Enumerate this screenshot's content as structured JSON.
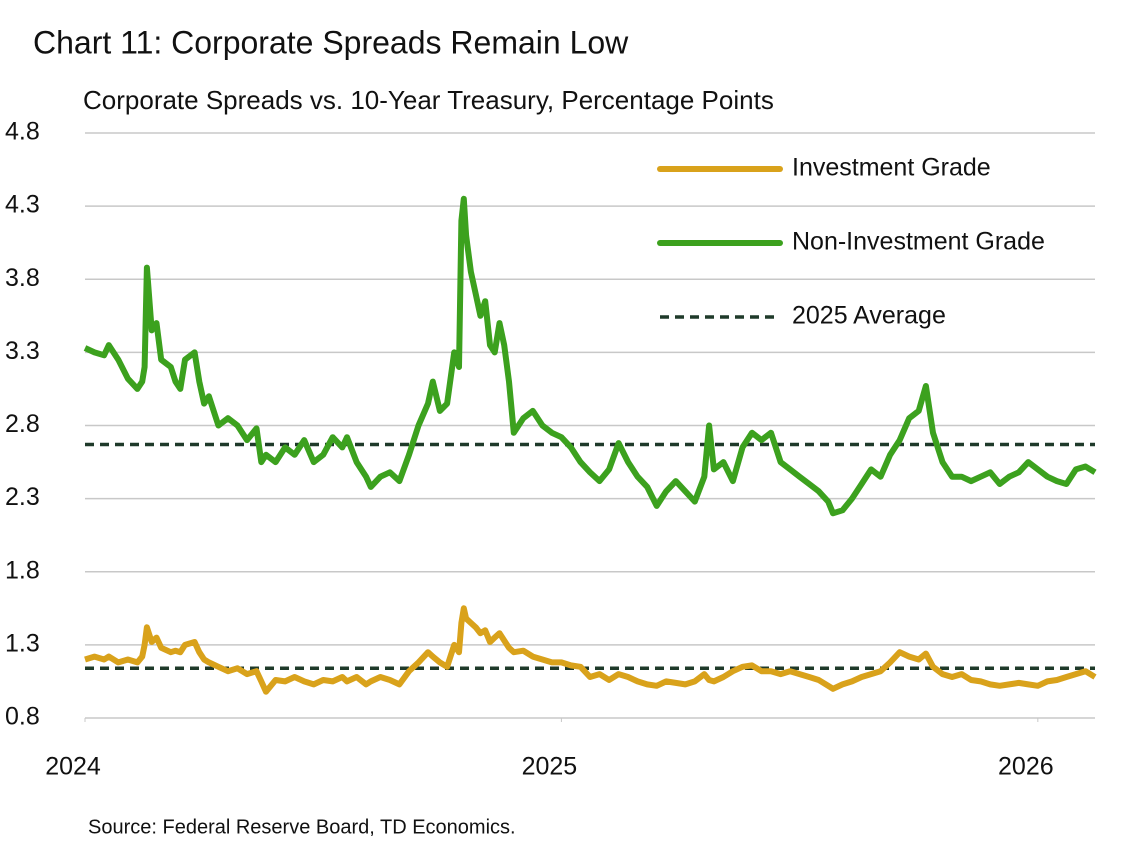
{
  "chart_data": {
    "type": "line",
    "title": "Chart 11: Corporate Spreads Remain Low",
    "subtitle": "Corporate Spreads vs. 10-Year Treasury, Percentage Points",
    "source": "Source: Federal Reserve Board, TD Economics.",
    "xlim": [
      2024,
      2026.12
    ],
    "xticks": [
      2024,
      2025,
      2026
    ],
    "ylim": [
      0.8,
      4.8
    ],
    "yticks": [
      0.8,
      1.3,
      1.8,
      2.3,
      2.8,
      3.3,
      3.8,
      4.3,
      4.8
    ],
    "grid": true,
    "legend": "top-right",
    "x": [
      2024,
      2024.02,
      2024.04,
      2024.05,
      2024.07,
      2024.09,
      2024.11,
      2024.12,
      2024.125,
      2024.13,
      2024.14,
      2024.15,
      2024.16,
      2024.18,
      2024.19,
      2024.2,
      2024.21,
      2024.23,
      2024.24,
      2024.25,
      2024.26,
      2024.28,
      2024.3,
      2024.32,
      2024.34,
      2024.36,
      2024.37,
      2024.38,
      2024.4,
      2024.42,
      2024.44,
      2024.46,
      2024.48,
      2024.5,
      2024.52,
      2024.54,
      2024.55,
      2024.57,
      2024.59,
      2024.6,
      2024.62,
      2024.64,
      2024.66,
      2024.68,
      2024.7,
      2024.72,
      2024.73,
      2024.745,
      2024.76,
      2024.775,
      2024.785,
      2024.79,
      2024.795,
      2024.8,
      2024.81,
      2024.82,
      2024.83,
      2024.84,
      2024.85,
      2024.86,
      2024.87,
      2024.88,
      2024.89,
      2024.9,
      2024.92,
      2024.94,
      2024.96,
      2024.98,
      2025,
      2025.02,
      2025.04,
      2025.06,
      2025.08,
      2025.1,
      2025.12,
      2025.14,
      2025.16,
      2025.18,
      2025.2,
      2025.22,
      2025.24,
      2025.26,
      2025.28,
      2025.3,
      2025.31,
      2025.32,
      2025.34,
      2025.36,
      2025.38,
      2025.4,
      2025.42,
      2025.44,
      2025.46,
      2025.48,
      2025.5,
      2025.52,
      2025.54,
      2025.56,
      2025.57,
      2025.59,
      2025.61,
      2025.63,
      2025.65,
      2025.67,
      2025.69,
      2025.71,
      2025.73,
      2025.75,
      2025.765,
      2025.78,
      2025.8,
      2025.82,
      2025.84,
      2025.86,
      2025.88,
      2025.9,
      2025.92,
      2025.94,
      2025.96,
      2025.98,
      2026,
      2026.02,
      2026.04,
      2026.06,
      2026.08,
      2026.1,
      2026.12
    ],
    "series": [
      {
        "name": "Investment Grade",
        "color": "#d9a21b",
        "values": [
          1.2,
          1.22,
          1.2,
          1.22,
          1.18,
          1.2,
          1.18,
          1.22,
          1.3,
          1.42,
          1.32,
          1.35,
          1.28,
          1.25,
          1.26,
          1.25,
          1.3,
          1.32,
          1.25,
          1.2,
          1.18,
          1.15,
          1.12,
          1.14,
          1.1,
          1.12,
          1.05,
          0.98,
          1.06,
          1.05,
          1.08,
          1.05,
          1.03,
          1.06,
          1.05,
          1.08,
          1.05,
          1.08,
          1.03,
          1.05,
          1.08,
          1.06,
          1.03,
          1.12,
          1.18,
          1.25,
          1.22,
          1.18,
          1.15,
          1.3,
          1.25,
          1.45,
          1.55,
          1.48,
          1.45,
          1.42,
          1.38,
          1.4,
          1.32,
          1.35,
          1.38,
          1.33,
          1.28,
          1.25,
          1.26,
          1.22,
          1.2,
          1.18,
          1.18,
          1.16,
          1.15,
          1.08,
          1.1,
          1.06,
          1.1,
          1.08,
          1.05,
          1.03,
          1.02,
          1.05,
          1.04,
          1.03,
          1.05,
          1.1,
          1.06,
          1.05,
          1.08,
          1.12,
          1.15,
          1.16,
          1.12,
          1.12,
          1.1,
          1.12,
          1.1,
          1.08,
          1.06,
          1.02,
          1.0,
          1.03,
          1.05,
          1.08,
          1.1,
          1.12,
          1.18,
          1.25,
          1.22,
          1.2,
          1.24,
          1.15,
          1.1,
          1.08,
          1.1,
          1.06,
          1.05,
          1.03,
          1.02,
          1.03,
          1.04,
          1.03,
          1.02,
          1.05,
          1.06,
          1.08,
          1.1,
          1.12,
          1.08
        ]
      },
      {
        "name": "Non-Investment Grade",
        "color": "#3ca11e",
        "values": [
          3.33,
          3.3,
          3.28,
          3.35,
          3.25,
          3.12,
          3.05,
          3.1,
          3.2,
          3.88,
          3.45,
          3.5,
          3.25,
          3.2,
          3.1,
          3.05,
          3.25,
          3.3,
          3.1,
          2.95,
          3.0,
          2.8,
          2.85,
          2.8,
          2.7,
          2.78,
          2.55,
          2.6,
          2.55,
          2.65,
          2.6,
          2.7,
          2.55,
          2.6,
          2.72,
          2.65,
          2.72,
          2.55,
          2.45,
          2.38,
          2.45,
          2.48,
          2.42,
          2.6,
          2.8,
          2.95,
          3.1,
          2.9,
          2.95,
          3.3,
          3.2,
          4.2,
          4.35,
          4.1,
          3.85,
          3.7,
          3.55,
          3.65,
          3.35,
          3.3,
          3.5,
          3.35,
          3.1,
          2.75,
          2.85,
          2.9,
          2.8,
          2.75,
          2.72,
          2.65,
          2.55,
          2.48,
          2.42,
          2.5,
          2.68,
          2.55,
          2.45,
          2.38,
          2.25,
          2.35,
          2.42,
          2.35,
          2.28,
          2.45,
          2.8,
          2.5,
          2.55,
          2.42,
          2.65,
          2.75,
          2.7,
          2.75,
          2.55,
          2.5,
          2.45,
          2.4,
          2.35,
          2.28,
          2.2,
          2.22,
          2.3,
          2.4,
          2.5,
          2.45,
          2.6,
          2.7,
          2.85,
          2.9,
          3.07,
          2.75,
          2.55,
          2.45,
          2.45,
          2.42,
          2.45,
          2.48,
          2.4,
          2.45,
          2.48,
          2.55,
          2.5,
          2.45,
          2.42,
          2.4,
          2.5,
          2.52,
          2.48
        ]
      }
    ],
    "average": {
      "name": "2025 Average",
      "color": "#1f3a2a",
      "values": [
        2.67,
        1.14
      ]
    }
  }
}
